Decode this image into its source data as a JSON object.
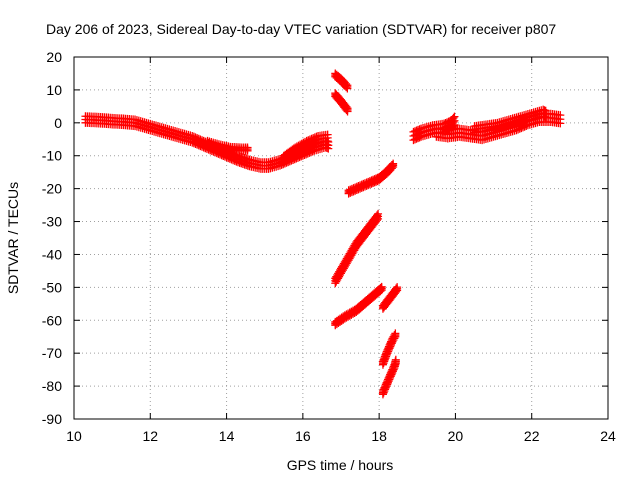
{
  "chart_data": {
    "type": "scatter",
    "title": "Day 206 of 2023, Sidereal Day-to-day VTEC variation (SDTVAR) for receiver p807",
    "xlabel": "GPS time / hours",
    "ylabel": "SDTVAR / TECUs",
    "xlim": [
      10,
      24
    ],
    "ylim": [
      -90,
      20
    ],
    "xticks": [
      "10",
      "12",
      "14",
      "16",
      "18",
      "20",
      "22",
      "24"
    ],
    "yticks": [
      "-90",
      "-80",
      "-70",
      "-60",
      "-50",
      "-40",
      "-30",
      "-20",
      "-10",
      "0",
      "10",
      "20"
    ],
    "grid": true,
    "marker": "plus",
    "series_color": "#ff0000",
    "series": [
      {
        "name": "seg-a",
        "points": [
          [
            10.3,
            1
          ],
          [
            10.5,
            0.9
          ],
          [
            10.8,
            0.7
          ],
          [
            11.0,
            0.5
          ],
          [
            11.3,
            0.3
          ],
          [
            11.6,
            0
          ],
          [
            11.9,
            -1
          ],
          [
            12.2,
            -2
          ],
          [
            12.5,
            -3
          ],
          [
            12.8,
            -4
          ],
          [
            13.1,
            -5
          ],
          [
            13.4,
            -6.5
          ],
          [
            13.7,
            -8
          ],
          [
            14.0,
            -9.5
          ],
          [
            14.3,
            -11
          ],
          [
            14.6,
            -12.2
          ],
          [
            14.9,
            -13
          ],
          [
            15.1,
            -13
          ],
          [
            15.4,
            -12
          ],
          [
            15.7,
            -10.5
          ],
          [
            16.0,
            -9
          ],
          [
            16.3,
            -7.5
          ],
          [
            16.6,
            -6.5
          ],
          [
            16.7,
            -7
          ]
        ],
        "spread": 2
      },
      {
        "name": "seg-b",
        "points": [
          [
            13.5,
            -6
          ],
          [
            13.8,
            -7
          ],
          [
            14.1,
            -7.8
          ],
          [
            14.4,
            -8
          ],
          [
            14.6,
            -8
          ]
        ],
        "spread": 1
      },
      {
        "name": "seg-c",
        "points": [
          [
            15.5,
            -11
          ],
          [
            15.8,
            -8.5
          ],
          [
            16.1,
            -6.5
          ],
          [
            16.4,
            -5
          ],
          [
            16.7,
            -4.5
          ]
        ],
        "spread": 2
      },
      {
        "name": "seg-d",
        "points": [
          [
            16.85,
            14.5
          ],
          [
            17.0,
            13
          ],
          [
            17.2,
            10.5
          ]
        ],
        "spread": 1
      },
      {
        "name": "seg-e",
        "points": [
          [
            16.85,
            8.5
          ],
          [
            17.0,
            6.5
          ],
          [
            17.2,
            3.5
          ]
        ],
        "spread": 1
      },
      {
        "name": "seg-f",
        "points": [
          [
            17.2,
            -21
          ],
          [
            17.5,
            -19.5
          ],
          [
            17.8,
            -18
          ],
          [
            18.0,
            -17
          ],
          [
            18.2,
            -15
          ],
          [
            18.4,
            -12.5
          ]
        ],
        "spread": 1
      },
      {
        "name": "seg-g",
        "points": [
          [
            16.85,
            -48
          ],
          [
            17.0,
            -45
          ],
          [
            17.2,
            -41
          ],
          [
            17.4,
            -37
          ],
          [
            17.6,
            -34
          ],
          [
            17.8,
            -31
          ],
          [
            18.0,
            -28
          ]
        ],
        "spread": 1.5
      },
      {
        "name": "seg-h",
        "points": [
          [
            16.85,
            -61
          ],
          [
            17.1,
            -59
          ],
          [
            17.4,
            -57
          ],
          [
            17.7,
            -54
          ],
          [
            17.9,
            -52
          ],
          [
            18.1,
            -50
          ]
        ],
        "spread": 1
      },
      {
        "name": "seg-i",
        "points": [
          [
            18.1,
            -56
          ],
          [
            18.3,
            -53
          ],
          [
            18.5,
            -50
          ]
        ],
        "spread": 1
      },
      {
        "name": "seg-j",
        "points": [
          [
            18.1,
            -73
          ],
          [
            18.2,
            -70
          ],
          [
            18.35,
            -66
          ],
          [
            18.45,
            -64
          ]
        ],
        "spread": 1
      },
      {
        "name": "seg-k",
        "points": [
          [
            18.1,
            -82
          ],
          [
            18.25,
            -78
          ],
          [
            18.4,
            -74
          ],
          [
            18.45,
            -72
          ]
        ],
        "spread": 1
      },
      {
        "name": "seg-l",
        "points": [
          [
            18.9,
            -4
          ],
          [
            19.1,
            -3
          ],
          [
            19.4,
            -2
          ],
          [
            19.7,
            -1.5
          ],
          [
            19.9,
            -0.5
          ],
          [
            20.0,
            1
          ]
        ],
        "spread": 2.5
      },
      {
        "name": "seg-m",
        "points": [
          [
            19.5,
            -3
          ],
          [
            19.8,
            -3.5
          ],
          [
            20.1,
            -3
          ],
          [
            20.4,
            -3.5
          ],
          [
            20.7,
            -4
          ],
          [
            21.0,
            -3
          ],
          [
            21.3,
            -2
          ],
          [
            21.6,
            -1
          ],
          [
            21.9,
            0.5
          ],
          [
            22.2,
            1.5
          ],
          [
            22.5,
            1.5
          ],
          [
            22.8,
            1
          ]
        ],
        "spread": 2.5
      },
      {
        "name": "seg-n",
        "points": [
          [
            20.5,
            -2
          ],
          [
            20.8,
            -1.5
          ],
          [
            21.1,
            -1
          ],
          [
            21.4,
            0
          ],
          [
            21.7,
            1
          ],
          [
            22.0,
            2
          ],
          [
            22.3,
            3
          ],
          [
            22.4,
            2.5
          ]
        ],
        "spread": 2
      }
    ]
  }
}
